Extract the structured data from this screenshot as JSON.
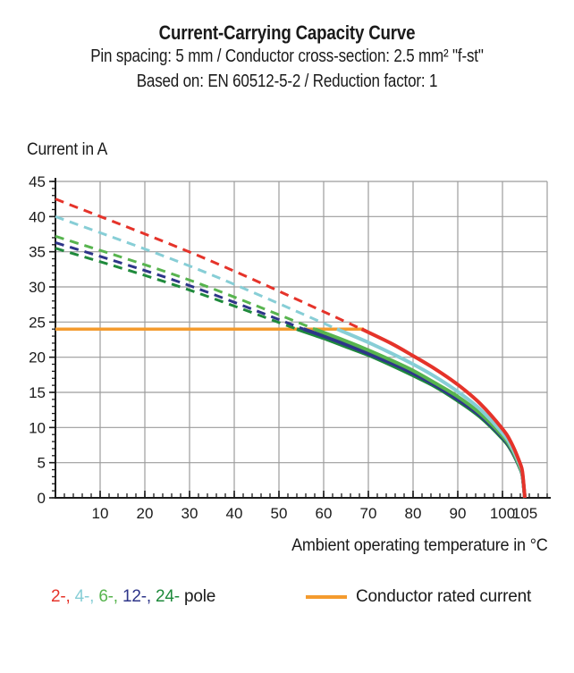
{
  "header": {
    "title": "Current-Carrying Capacity Curve",
    "subtitle_line1": "Pin spacing: 5 mm / Conductor cross-section: 2.5 mm² \"f-st\"",
    "subtitle_line2": "Based on: EN 60512-5-2 / Reduction factor: 1"
  },
  "chart_data": {
    "type": "line",
    "title": "Current-Carrying Capacity Curve",
    "ylabel": "Current in A",
    "xlabel": "Ambient operating temperature in °C",
    "xlim": [
      0,
      110
    ],
    "ylim": [
      0,
      45
    ],
    "x_ticks": [
      10,
      20,
      30,
      40,
      50,
      60,
      70,
      80,
      90,
      100,
      105
    ],
    "y_ticks": [
      0,
      5,
      10,
      15,
      20,
      25,
      30,
      35,
      40,
      45
    ],
    "x_minor_step": 2,
    "y_minor_step": 1,
    "grid": {
      "show": true,
      "color": "#9c9c9c",
      "x_step": 10,
      "y_step": 5
    },
    "axis_color": "#1a1a1a",
    "rated_current": {
      "value": 24,
      "x_start": 0,
      "x_end": 69,
      "color": "#f49b2e",
      "label": "Conductor rated current"
    },
    "legend": {
      "pole_suffix": "pole",
      "text_color": "#1a1a1a"
    },
    "series": [
      {
        "name": "2-pole",
        "legend_label": "2-",
        "color": "#e5332a",
        "derating_dashed_points": [
          [
            0,
            42.5
          ],
          [
            34,
            33.9
          ],
          [
            68.5,
            24
          ]
        ],
        "capacity_solid_points": [
          [
            68.5,
            24
          ],
          [
            75,
            22.0
          ],
          [
            80,
            20.2
          ],
          [
            85,
            18.3
          ],
          [
            90,
            16.1
          ],
          [
            95,
            13.4
          ],
          [
            100,
            9.8
          ],
          [
            102,
            7.8
          ],
          [
            104,
            4.8
          ],
          [
            104.5,
            3.5
          ],
          [
            105,
            0
          ]
        ]
      },
      {
        "name": "4-pole",
        "legend_label": "4-",
        "color": "#87ced6",
        "derating_dashed_points": [
          [
            0,
            40.0
          ],
          [
            31.5,
            32.6
          ],
          [
            63,
            24
          ]
        ],
        "capacity_solid_points": [
          [
            63,
            24
          ],
          [
            70,
            22.1
          ],
          [
            75,
            20.6
          ],
          [
            80,
            19.0
          ],
          [
            85,
            17.2
          ],
          [
            90,
            15.1
          ],
          [
            95,
            12.6
          ],
          [
            100,
            9.2
          ],
          [
            102,
            7.3
          ],
          [
            104,
            4.5
          ],
          [
            104.5,
            3.3
          ],
          [
            105,
            0
          ]
        ]
      },
      {
        "name": "6-pole",
        "legend_label": "6-",
        "color": "#57b44e",
        "derating_dashed_points": [
          [
            0,
            37.2
          ],
          [
            29,
            31.2
          ],
          [
            58,
            24
          ]
        ],
        "capacity_solid_points": [
          [
            58,
            24
          ],
          [
            65,
            22.3
          ],
          [
            70,
            21.0
          ],
          [
            75,
            19.6
          ],
          [
            80,
            18.1
          ],
          [
            85,
            16.3
          ],
          [
            90,
            14.4
          ],
          [
            95,
            12.0
          ],
          [
            100,
            8.8
          ],
          [
            102,
            7.0
          ],
          [
            104,
            4.2
          ],
          [
            104.5,
            3.1
          ],
          [
            105,
            0
          ]
        ]
      },
      {
        "name": "12-pole",
        "legend_label": "12-",
        "color": "#2e3589",
        "derating_dashed_points": [
          [
            0,
            36.3
          ],
          [
            27.7,
            30.7
          ],
          [
            55.5,
            24
          ]
        ],
        "capacity_solid_points": [
          [
            55.5,
            24
          ],
          [
            60,
            23.0
          ],
          [
            65,
            21.8
          ],
          [
            70,
            20.5
          ],
          [
            75,
            19.2
          ],
          [
            80,
            17.7
          ],
          [
            85,
            16.0
          ],
          [
            90,
            14.0
          ],
          [
            95,
            11.7
          ],
          [
            100,
            8.6
          ],
          [
            102,
            6.8
          ],
          [
            104,
            4.1
          ],
          [
            104.5,
            3.0
          ],
          [
            105,
            0
          ]
        ]
      },
      {
        "name": "24-pole",
        "legend_label": "24-",
        "color": "#1f8a3c",
        "derating_dashed_points": [
          [
            0,
            35.5
          ],
          [
            27,
            30.2
          ],
          [
            54,
            24
          ]
        ],
        "capacity_solid_points": [
          [
            54,
            24
          ],
          [
            60,
            22.7
          ],
          [
            65,
            21.5
          ],
          [
            70,
            20.3
          ],
          [
            75,
            18.9
          ],
          [
            80,
            17.4
          ],
          [
            85,
            15.8
          ],
          [
            90,
            13.8
          ],
          [
            95,
            11.5
          ],
          [
            100,
            8.4
          ],
          [
            102,
            6.7
          ],
          [
            104,
            4.1
          ],
          [
            104.5,
            3.0
          ],
          [
            105,
            0
          ]
        ]
      }
    ]
  }
}
